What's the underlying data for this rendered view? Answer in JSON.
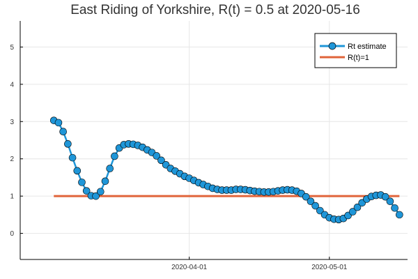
{
  "chart_data": {
    "type": "line",
    "title": "East Riding of Yorkshire, R(t) = 0.5 at 2020-05-16",
    "xlabel": "",
    "ylabel": "",
    "ylim": [
      -0.7,
      5.7
    ],
    "y_ticks": [
      0,
      1,
      2,
      3,
      4,
      5
    ],
    "x_ticks": [
      "2020-04-01",
      "2020-05-01"
    ],
    "x_start": "2020-03-05",
    "x_end": "2020-05-16",
    "grid": true,
    "legend_position": "top-right",
    "series": [
      {
        "name": "Rt estimate",
        "color": "#1f96d8",
        "marker": "circle",
        "x_start_date": "2020-03-03",
        "values": [
          3.03,
          2.97,
          2.73,
          2.4,
          2.03,
          1.68,
          1.37,
          1.14,
          1.01,
          1.0,
          1.12,
          1.4,
          1.74,
          2.07,
          2.29,
          2.38,
          2.4,
          2.39,
          2.36,
          2.31,
          2.24,
          2.17,
          2.08,
          1.96,
          1.84,
          1.74,
          1.67,
          1.6,
          1.53,
          1.48,
          1.42,
          1.36,
          1.31,
          1.26,
          1.21,
          1.18,
          1.16,
          1.16,
          1.16,
          1.18,
          1.18,
          1.17,
          1.15,
          1.13,
          1.12,
          1.11,
          1.11,
          1.12,
          1.14,
          1.16,
          1.17,
          1.16,
          1.13,
          1.07,
          0.98,
          0.86,
          0.74,
          0.61,
          0.5,
          0.42,
          0.38,
          0.37,
          0.4,
          0.48,
          0.58,
          0.7,
          0.82,
          0.92,
          0.99,
          1.02,
          1.03,
          0.98,
          0.86,
          0.68,
          0.5
        ]
      },
      {
        "name": "R(t)=1",
        "color": "#e0643a",
        "x": [
          "2020-03-03",
          "2020-05-16"
        ],
        "values": [
          1,
          1
        ]
      }
    ]
  }
}
